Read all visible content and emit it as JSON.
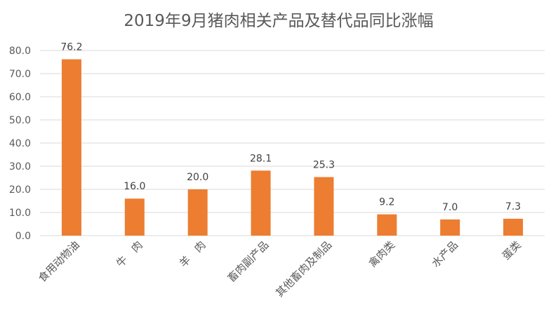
{
  "chart_data": {
    "type": "bar",
    "title": "2019年9月猪肉相关产品及替代品同比涨幅",
    "categories": [
      "食用动物油",
      "牛　肉",
      "羊　肉",
      "畜肉副产品",
      "其他畜肉及制品",
      "禽肉类",
      "水产品",
      "蛋类"
    ],
    "values": [
      76.2,
      16.0,
      20.0,
      28.1,
      25.3,
      9.2,
      7.0,
      7.3
    ],
    "data_labels": [
      "76.2",
      "16.0",
      "20.0",
      "28.1",
      "25.3",
      "9.2",
      "7.0",
      "7.3"
    ],
    "y_ticks": [
      "0.0",
      "10.0",
      "20.0",
      "30.0",
      "40.0",
      "50.0",
      "60.0",
      "70.0",
      "80.0"
    ],
    "ylim": [
      0,
      80
    ],
    "xlabel": "",
    "ylabel": "",
    "grid": true,
    "legend": "none",
    "bar_color": "#ED7D31"
  }
}
